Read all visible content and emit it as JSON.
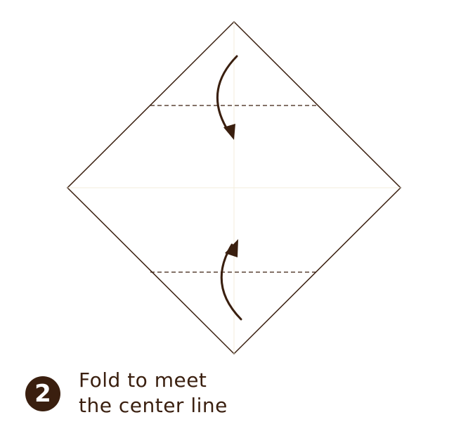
{
  "step": {
    "number": "2",
    "instruction_line1": "Fold to meet",
    "instruction_line2": "the center line"
  },
  "colors": {
    "outline": "#3a1f0f",
    "arrow": "#3a1f0f",
    "fold_line": "#3a1f0f",
    "crease": "#f3eedc",
    "badge": "#3a1f0f",
    "text": "#3a1f0f"
  }
}
